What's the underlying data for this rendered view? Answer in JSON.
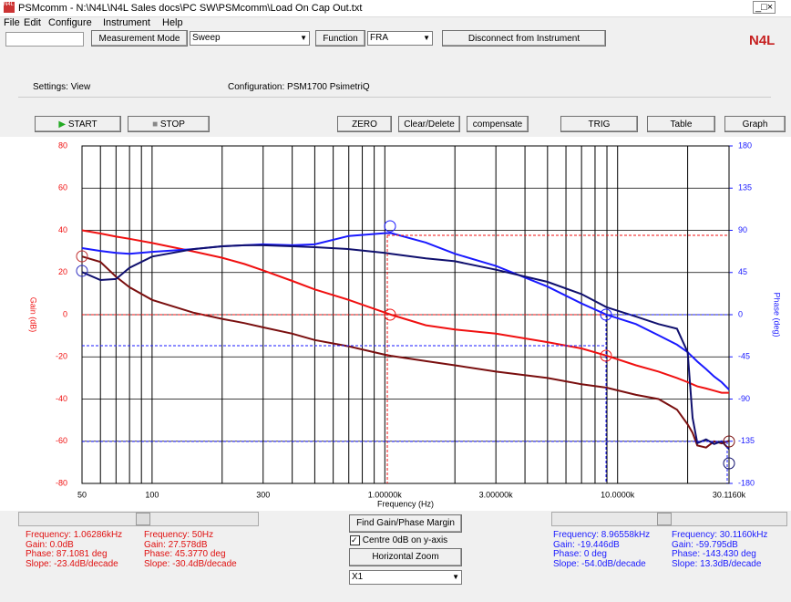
{
  "window": {
    "title": "PSMcomm - N:\\N4L\\N4L Sales docs\\PC SW\\PSMcomm\\Load On Cap Out.txt",
    "menu": [
      "File",
      "Edit",
      "Configure",
      "Instrument",
      "Help"
    ]
  },
  "toolbar": {
    "measurement_mode_label": "Measurement Mode",
    "measurement_mode": "Sweep",
    "function_label": "Function",
    "function": "FRA",
    "disconnect": "Disconnect from Instrument",
    "logo": "N4L"
  },
  "settings": {
    "view": "Settings: View",
    "configuration": "Configuration: PSM1700 PsimetriQ"
  },
  "buttons": [
    "START",
    "STOP",
    "ZERO",
    "Clear/Delete",
    "compensate",
    "TRIG",
    "Table",
    "Graph"
  ],
  "chart_data": {
    "type": "line",
    "xlabel": "Frequency (Hz)",
    "ylabel": "Gain (dB)",
    "y2label": "Phase (deg)",
    "log_x": true,
    "grid": true,
    "x": [
      50,
      60,
      70,
      80,
      100,
      150,
      200,
      250,
      300,
      400,
      500,
      700,
      1000,
      1062,
      1500,
      2000,
      3000,
      5000,
      7000,
      8966,
      12000,
      15000,
      18000,
      20000,
      21000,
      22000,
      24000,
      26000,
      28000,
      30116
    ],
    "series": [
      {
        "color": "#f01010",
        "values": [
          40,
          38.5,
          37,
          36,
          34,
          30,
          27,
          24,
          21,
          16,
          12,
          7,
          1,
          0,
          -5,
          -7,
          -9,
          -13,
          -16,
          -19.4,
          -24,
          -27,
          -30,
          -32,
          -33,
          -34,
          -35,
          -36,
          -37,
          -37
        ]
      },
      {
        "color": "#7a0f0f",
        "values": [
          27.6,
          25,
          18,
          13,
          7,
          1,
          -2,
          -4,
          -6,
          -9,
          -12,
          -15,
          -19,
          -19.5,
          -22,
          -24,
          -27,
          -30,
          -33,
          -34.6,
          -38,
          -40,
          -45,
          -52,
          -56,
          -62,
          -63,
          -60,
          -61,
          -59.8
        ]
      },
      {
        "color": "#1a1aff",
        "axis": "y2",
        "values": [
          71,
          68,
          66,
          65,
          67,
          70,
          73,
          74,
          75,
          74,
          75,
          84,
          87,
          87.1,
          77,
          65,
          52,
          30,
          12,
          0,
          -10,
          -22,
          -32,
          -40,
          -45,
          -50,
          -58,
          -66,
          -72,
          -80
        ]
      },
      {
        "color": "#10106e",
        "axis": "y2",
        "values": [
          45.4,
          37,
          38,
          50,
          62,
          70,
          73,
          74,
          74,
          73,
          72,
          70,
          66,
          65,
          60,
          57,
          48,
          35,
          22,
          8,
          -2,
          -10,
          -15,
          -40,
          -110,
          -137,
          -133,
          -138,
          -135,
          -143.4
        ]
      }
    ],
    "xlim": [
      50,
      30116
    ],
    "xticks": [
      50,
      100,
      300,
      {
        "value": 1000,
        "label": "1.00000k"
      },
      {
        "value": 3000,
        "label": "3.00000k"
      },
      {
        "value": 10000,
        "label": "10.0000k"
      },
      {
        "value": 30116,
        "label": "30.1160k"
      }
    ],
    "xminorticks": [
      60,
      70,
      80,
      90,
      200,
      400,
      500,
      600,
      700,
      800,
      900,
      2000,
      4000,
      5000,
      6000,
      7000,
      8000,
      9000,
      20000
    ],
    "ylim": [
      -80,
      80
    ],
    "yticks": [
      80,
      60,
      40,
      20,
      0,
      -20,
      -40,
      -60,
      -80
    ],
    "y2lim": [
      -180,
      180
    ],
    "y2ticks": [
      180,
      135,
      90,
      45,
      0,
      -45,
      -90,
      -135,
      -180
    ]
  },
  "readouts": [
    [
      "Frequency: 1.06286kHz",
      "Gain: 0.0dB",
      "Phase: 87.1081 deg",
      "Slope: -23.4dB/decade"
    ],
    [
      "Frequency: 50Hz",
      "Gain: 27.578dB",
      "Phase: 45.3770 deg",
      "Slope: -30.4dB/decade"
    ],
    [
      "Frequency: 8.96558kHz",
      "Gain: -19.446dB",
      "Phase: 0 deg",
      "Slope: -54.0dB/decade"
    ],
    [
      "Frequency: 30.1160kHz",
      "Gain: -59.795dB",
      "Phase: -143.430 deg",
      "Slope: 13.3dB/decade"
    ]
  ],
  "controls": {
    "find": "Find Gain/Phase Margin",
    "centre": "Centre 0dB on y-axis",
    "zoom": "Horizontal Zoom",
    "zoom_value": "X1"
  }
}
